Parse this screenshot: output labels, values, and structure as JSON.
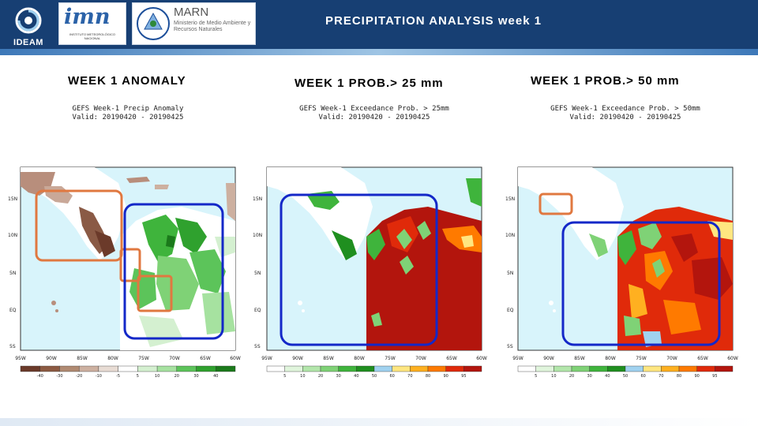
{
  "header": {
    "title": "PRECIPITATION ANALYSIS  week 1",
    "ideam_label": "IDEAM",
    "imn_logo_text": "imn",
    "imn_logo_subtitle": "INSTITUTO METEOROLÓGICO NACIONAL",
    "marn_logo_text": "MARN",
    "marn_logo_subtitle": "Ministerio de Medio Ambiente y Recursos Naturales"
  },
  "panels": [
    {
      "heading": "WEEK 1 ANOMALY",
      "map_title_line1": "GEFS Week-1 Precip Anomaly",
      "map_title_line2": "Valid: 20190420 - 20190425",
      "lat_labels": [
        "15N",
        "10N",
        "5N",
        "EQ",
        "5S"
      ],
      "lon_labels": [
        "95W",
        "90W",
        "85W",
        "80W",
        "75W",
        "70W",
        "65W",
        "60W"
      ],
      "colorbar_labels": [
        "-40",
        "-30",
        "-20",
        "-10",
        "-5",
        "5",
        "10",
        "20",
        "30",
        "40"
      ],
      "colorbar_colors": [
        "#6b3a2a",
        "#8c5a42",
        "#b08a72",
        "#cdb0a0",
        "#e8dcd4",
        "#ffffff",
        "#d4f0d0",
        "#a6e2a0",
        "#5cc45a",
        "#2fa12e",
        "#1b7a1b"
      ],
      "highlight_color": "#e07840"
    },
    {
      "heading": "WEEK 1 PROB.> 25 mm",
      "map_title_line1": "GEFS Week-1 Exceedance Prob. > 25mm",
      "map_title_line2": "Valid: 20190420 - 20190425",
      "lat_labels": [
        "15N",
        "10N",
        "5N",
        "EQ",
        "5S"
      ],
      "lon_labels": [
        "95W",
        "90W",
        "85W",
        "80W",
        "75W",
        "70W",
        "65W",
        "60W"
      ],
      "colorbar_labels": [
        "5",
        "10",
        "20",
        "30",
        "40",
        "50",
        "60",
        "70",
        "80",
        "90",
        "95"
      ],
      "colorbar_colors": [
        "#ffffff",
        "#e0f5dc",
        "#b2e6aa",
        "#7fd276",
        "#3fb43c",
        "#1f8f1f",
        "#a0d2f0",
        "#ffe680",
        "#ffb020",
        "#ff7a00",
        "#e02a0a",
        "#b3150d"
      ],
      "highlight_color": "#1428c8"
    },
    {
      "heading": "WEEK 1 PROB.> 50 mm",
      "map_title_line1": "GEFS Week-1 Exceedance Prob. > 50mm",
      "map_title_line2": "Valid: 20190420 - 20190425",
      "lat_labels": [
        "15N",
        "10N",
        "5N",
        "EQ",
        "5S"
      ],
      "lon_labels": [
        "95W",
        "90W",
        "85W",
        "80W",
        "75W",
        "70W",
        "65W",
        "60W"
      ],
      "colorbar_labels": [
        "5",
        "10",
        "20",
        "30",
        "40",
        "50",
        "60",
        "70",
        "80",
        "90",
        "95"
      ],
      "colorbar_colors": [
        "#ffffff",
        "#e0f5dc",
        "#b2e6aa",
        "#7fd276",
        "#3fb43c",
        "#1f8f1f",
        "#a0d2f0",
        "#ffe680",
        "#ffb020",
        "#ff7a00",
        "#e02a0a",
        "#b3150d"
      ],
      "highlight_color": "#1428c8"
    }
  ],
  "colors": {
    "ocean": "#d8f4fb",
    "header_bg": "#173f73",
    "anomaly_box": "#e07840",
    "prob_box": "#1428c8"
  }
}
